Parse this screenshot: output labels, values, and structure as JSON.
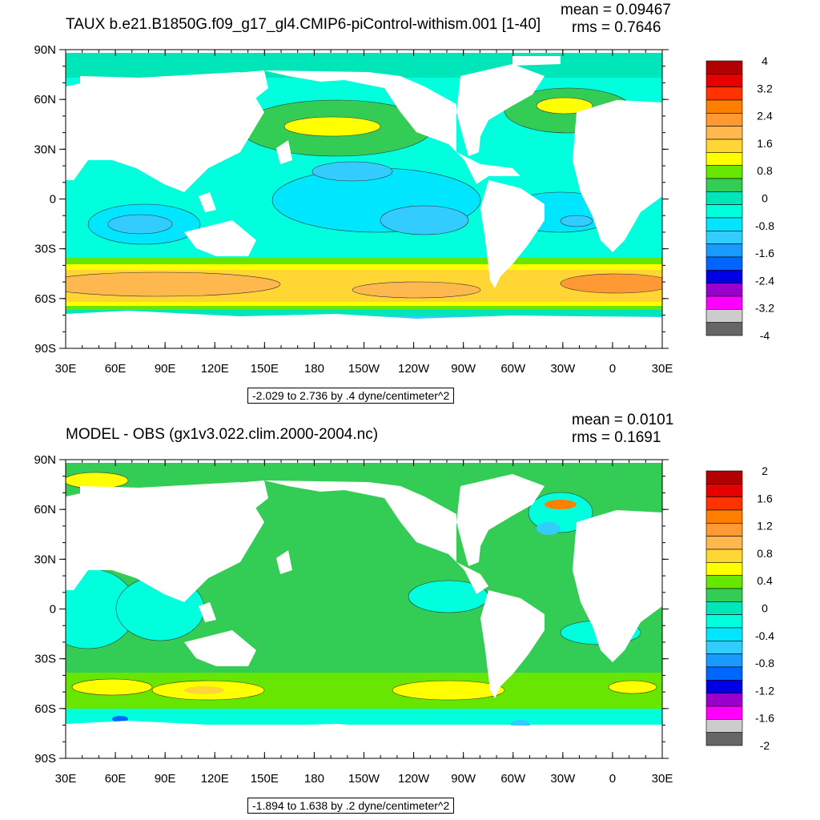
{
  "lon_labels": [
    "30E",
    "60E",
    "90E",
    "120E",
    "150E",
    "180",
    "150W",
    "120W",
    "90W",
    "60W",
    "30W",
    "0",
    "30E"
  ],
  "lat_labels": [
    "90N",
    "60N",
    "30N",
    "0",
    "30S",
    "60S",
    "90S"
  ],
  "panels": [
    {
      "title": "TAUX b.e21.B1850G.f09_g17_gl4.CMIP6-piControl-withism.001 [1-40]",
      "mean": "mean = 0.09467",
      "rms": "rms = 0.7646",
      "subtitle": "-2.029 to 2.736 by .4 dyne/centimeter^2",
      "colorbar_labels": [
        "4",
        "3.2",
        "2.4",
        "1.6",
        "0.8",
        "0",
        "-0.8",
        "-1.6",
        "-2.4",
        "-3.2",
        "-4"
      ]
    },
    {
      "title": "MODEL - OBS (gx1v3.022.clim.2000-2004.nc)",
      "mean": "mean = 0.0101",
      "rms": "rms = 0.1691",
      "subtitle": "-1.894 to 1.638 by .2 dyne/centimeter^2",
      "colorbar_labels": [
        "2",
        "1.6",
        "1.2",
        "0.8",
        "0.4",
        "0",
        "-0.4",
        "-0.8",
        "-1.2",
        "-1.6",
        "-2"
      ]
    }
  ],
  "colors": {
    "scale": [
      "#b30000",
      "#e60000",
      "#ff3300",
      "#ff8000",
      "#ff9933",
      "#ffb84d",
      "#ffd633",
      "#ffff00",
      "#66e600",
      "#33cc55",
      "#00e6b8",
      "#00ffdd",
      "#00e6ff",
      "#33ccff",
      "#1a99ff",
      "#0066ff",
      "#0000e6",
      "#9900cc",
      "#ff00ff",
      "#cccccc",
      "#666666"
    ],
    "land": "#ffffff"
  }
}
